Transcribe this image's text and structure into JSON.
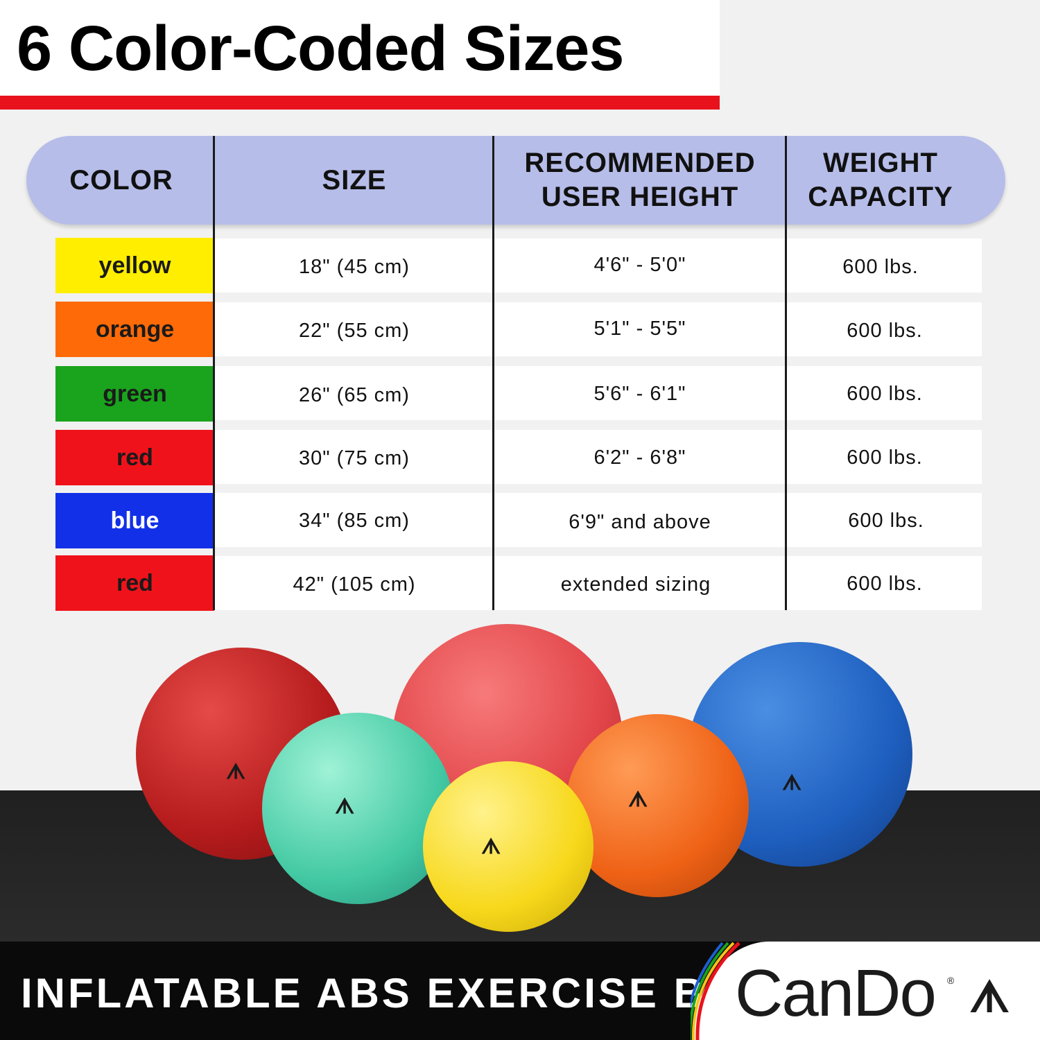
{
  "title": "6 Color-Coded Sizes",
  "table": {
    "headers": [
      "COLOR",
      "SIZE",
      "RECOMMENDED\nUSER HEIGHT",
      "WEIGHT\nCAPACITY"
    ],
    "rows": [
      {
        "color": "yellow",
        "size": "18\" (45 cm)",
        "height": "4'6\" - 5'0\"",
        "capacity": "600 lbs.",
        "swatch": "#ffee00",
        "text_color": "#1a1a1a"
      },
      {
        "color": "orange",
        "size": "22\" (55 cm)",
        "height": "5'1\" - 5'5\"",
        "capacity": "600 lbs.",
        "swatch": "#ff6a08",
        "text_color": "#1a1a1a"
      },
      {
        "color": "green",
        "size": "26\" (65 cm)",
        "height": "5'6\" - 6'1\"",
        "capacity": "600 lbs.",
        "swatch": "#1aa31d",
        "text_color": "#1a1a1a"
      },
      {
        "color": "red",
        "size": "30\" (75 cm)",
        "height": "6'2\" - 6'8\"",
        "capacity": "600 lbs.",
        "swatch": "#f0121a",
        "text_color": "#1a1a1a"
      },
      {
        "color": "blue",
        "size": "34\" (85 cm)",
        "height": "6'9\" and above",
        "capacity": "600 lbs.",
        "swatch": "#1230e8",
        "text_color": "#ffffff"
      },
      {
        "color": "red",
        "size": "42\" (105 cm)",
        "height": "extended sizing",
        "capacity": "600 lbs.",
        "swatch": "#f0121a",
        "text_color": "#1a1a1a"
      }
    ]
  },
  "footer": {
    "tagline": "INFLATABLE ABS EXERCISE BALLS",
    "brand": "CanDo",
    "registered": "®"
  },
  "colors": {
    "accent_red": "#e8121d",
    "header_fill": "#b6bde9"
  }
}
